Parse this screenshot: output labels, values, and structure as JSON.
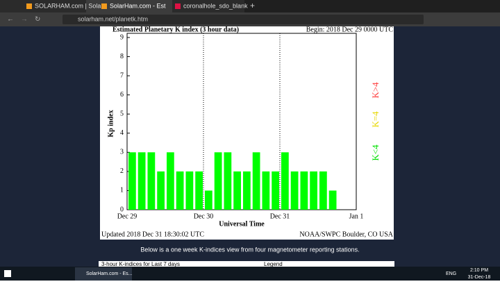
{
  "browser": {
    "tabs": [
      "SOLARHAM.com | Sola",
      "SolarHam.com - Est",
      "coronalhole_sdo_blank"
    ],
    "url": "solarham.net/planetk.htm"
  },
  "chart_data": {
    "type": "bar",
    "title": "Estimated Planetary K index (3 hour data)",
    "subtitle": "Begin: 2018 Dec 29 0000 UTC",
    "y_label": "Kp index",
    "x_label": "Universal Time",
    "footer_left": "Updated 2018 Dec 31 18:30:02 UTC",
    "footer_right": "NOAA/SWPC Boulder, CO USA",
    "categories": [
      null,
      null,
      null,
      null,
      null,
      null,
      null,
      null,
      null,
      null,
      null,
      null,
      null,
      null,
      null,
      null,
      null,
      null,
      null,
      null,
      null,
      null
    ],
    "values": [
      3,
      3,
      3,
      2,
      3,
      2,
      2,
      2,
      1,
      3,
      3,
      2,
      2,
      3,
      2,
      2,
      3,
      2,
      2,
      2,
      2,
      1
    ],
    "color": "#00ff00",
    "xlim": [
      0,
      24
    ],
    "xticks": [
      {
        "value": 0,
        "label": "Dec 29"
      },
      {
        "value": 8,
        "label": "Dec 30"
      },
      {
        "value": 16,
        "label": "Dec 31"
      },
      {
        "value": 24,
        "label": "Jan 1"
      }
    ],
    "ylim": [
      0,
      9
    ],
    "yticks": [
      0,
      1,
      2,
      3,
      4,
      5,
      6,
      7,
      8,
      9
    ],
    "legend": [
      {
        "label": "K>4",
        "color": "#ff4040"
      },
      {
        "label": "K=4",
        "color": "#e8d800"
      },
      {
        "label": "K<4",
        "color": "#00e000"
      }
    ]
  },
  "page": {
    "caption": "Below is a one week K-indices view from four magnetometer reporting stations.",
    "table_title": "3-hour K-indices for Last 7 days",
    "legend_label": "Legend"
  },
  "taskbar": {
    "window": "SolarHam.com - Es...",
    "language": "ENG",
    "time": "2:10 PM",
    "date": "31-Dec-18"
  }
}
